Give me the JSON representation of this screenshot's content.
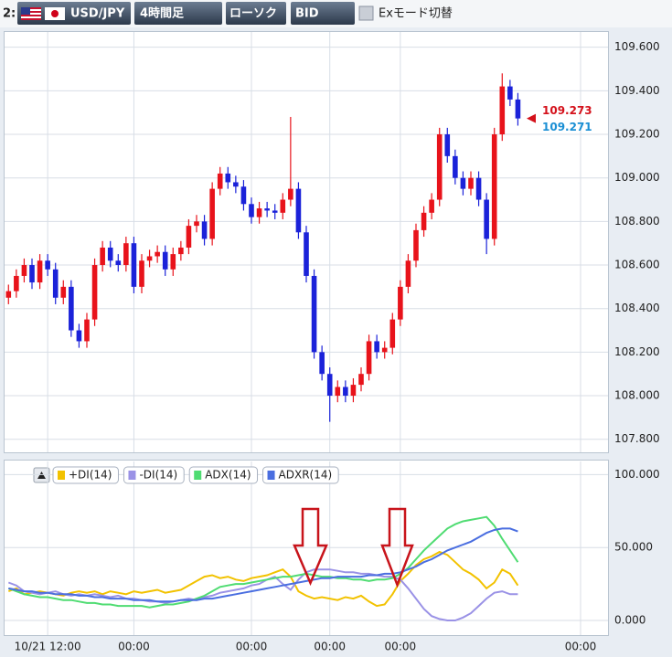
{
  "toolbar": {
    "index": "2:",
    "symbol": "USD/JPY",
    "timeframe": "4時間足",
    "chart_style": "ローソク",
    "price_type": "BID",
    "ex_mode": "Exモード切替"
  },
  "chart_data": [
    {
      "type": "candlestick",
      "up_color": "#e8131b",
      "down_color": "#1b22d9",
      "open": [
        108.45,
        108.48,
        108.55,
        108.6,
        108.52,
        108.62,
        108.58,
        108.45,
        108.5,
        108.3,
        108.25,
        108.35,
        108.6,
        108.68,
        108.62,
        108.6,
        108.7,
        108.5,
        108.62,
        108.64,
        108.66,
        108.58,
        108.65,
        108.68,
        108.78,
        108.8,
        108.72,
        108.95,
        109.02,
        108.98,
        108.96,
        108.88,
        108.82,
        108.86,
        108.85,
        108.84,
        108.9,
        108.95,
        108.75,
        108.55,
        108.2,
        108.1,
        108.0,
        108.04,
        108.0,
        108.05,
        108.1,
        108.25,
        108.2,
        108.22,
        108.35,
        108.5,
        108.62,
        108.76,
        108.84,
        108.9,
        109.2,
        109.1,
        109.0,
        108.95,
        109.0,
        108.9,
        108.72,
        109.2,
        109.42,
        109.36,
        null,
        null,
        null,
        null,
        null,
        null,
        null,
        null,
        null,
        null,
        null
      ],
      "high": [
        108.51,
        108.58,
        108.63,
        108.63,
        108.65,
        108.65,
        108.61,
        108.53,
        108.53,
        108.33,
        108.38,
        108.63,
        108.71,
        108.71,
        108.65,
        108.73,
        108.73,
        108.65,
        108.67,
        108.69,
        108.69,
        108.68,
        108.71,
        108.81,
        108.83,
        108.83,
        108.98,
        109.05,
        109.05,
        109.01,
        108.99,
        108.91,
        108.89,
        108.89,
        108.88,
        108.93,
        109.28,
        108.98,
        108.78,
        108.58,
        108.23,
        108.13,
        108.07,
        108.07,
        108.08,
        108.13,
        108.28,
        108.28,
        108.25,
        108.38,
        108.53,
        108.65,
        108.79,
        108.87,
        108.93,
        109.23,
        109.23,
        109.13,
        109.03,
        109.03,
        109.03,
        108.93,
        109.23,
        109.48,
        109.45,
        109.39,
        null,
        null,
        null,
        null,
        null,
        null,
        null,
        null,
        null,
        null,
        null
      ],
      "low": [
        108.42,
        108.45,
        108.52,
        108.49,
        108.49,
        108.55,
        108.42,
        108.42,
        108.27,
        108.22,
        108.22,
        108.32,
        108.57,
        108.59,
        108.57,
        108.57,
        108.47,
        108.47,
        108.59,
        108.61,
        108.55,
        108.55,
        108.62,
        108.65,
        108.75,
        108.69,
        108.69,
        108.92,
        108.95,
        108.93,
        108.85,
        108.79,
        108.79,
        108.82,
        108.81,
        108.81,
        108.87,
        108.72,
        108.52,
        108.17,
        108.07,
        107.88,
        107.97,
        107.97,
        107.97,
        108.02,
        108.07,
        108.17,
        108.17,
        108.19,
        108.32,
        108.47,
        108.59,
        108.73,
        108.81,
        108.87,
        109.07,
        108.97,
        108.92,
        108.92,
        108.87,
        108.65,
        108.69,
        109.17,
        109.33,
        109.24,
        null,
        null,
        null,
        null,
        null,
        null,
        null,
        null,
        null,
        null,
        null
      ],
      "close": [
        108.48,
        108.55,
        108.6,
        108.52,
        108.62,
        108.58,
        108.45,
        108.5,
        108.3,
        108.25,
        108.35,
        108.6,
        108.68,
        108.62,
        108.6,
        108.7,
        108.5,
        108.62,
        108.64,
        108.66,
        108.58,
        108.65,
        108.68,
        108.78,
        108.8,
        108.72,
        108.95,
        109.02,
        108.98,
        108.96,
        108.88,
        108.82,
        108.86,
        108.85,
        108.84,
        108.9,
        108.95,
        108.75,
        108.55,
        108.2,
        108.1,
        108.0,
        108.04,
        108.0,
        108.05,
        108.1,
        108.25,
        108.2,
        108.22,
        108.35,
        108.5,
        108.62,
        108.76,
        108.84,
        108.9,
        109.2,
        109.1,
        109.0,
        108.95,
        109.0,
        108.9,
        108.72,
        109.2,
        109.42,
        109.36,
        109.273,
        null,
        null,
        null,
        null,
        null,
        null,
        null,
        null,
        null,
        null,
        null
      ],
      "ylim": [
        107.74,
        109.67
      ],
      "yticks": [
        {
          "value": 109.6,
          "label": "109.600"
        },
        {
          "value": 109.4,
          "label": "109.400"
        },
        {
          "value": 109.2,
          "label": "109.200"
        },
        {
          "value": 109.0,
          "label": "109.000"
        },
        {
          "value": 108.8,
          "label": "108.800"
        },
        {
          "value": 108.6,
          "label": "108.600"
        },
        {
          "value": 108.4,
          "label": "108.400"
        },
        {
          "value": 108.2,
          "label": "108.200"
        },
        {
          "value": 108.0,
          "label": "108.000"
        },
        {
          "value": 107.8,
          "label": "107.800"
        }
      ],
      "grid": true,
      "price_labels": [
        {
          "value": 109.273,
          "color": "#d4111b"
        },
        {
          "value": 109.271,
          "color": "#1b8fd4"
        }
      ]
    },
    {
      "type": "line",
      "categories": [
        null,
        null,
        null,
        null,
        null,
        "10/21 12:00",
        null,
        null,
        null,
        null,
        null,
        null,
        null,
        null,
        null,
        null,
        "00:00",
        null,
        null,
        null,
        null,
        null,
        null,
        null,
        null,
        null,
        null,
        null,
        null,
        null,
        null,
        "00:00",
        null,
        null,
        null,
        null,
        null,
        null,
        null,
        null,
        null,
        "00:00",
        null,
        null,
        null,
        null,
        null,
        null,
        null,
        null,
        "00:00",
        null,
        null,
        null,
        null,
        null,
        null,
        null,
        null,
        null,
        null,
        null,
        null,
        null,
        null,
        null,
        null,
        null,
        null,
        null,
        null,
        null,
        null,
        "00:00",
        null,
        null,
        null
      ],
      "series": [
        {
          "name": "+DI(14)",
          "color": "#f2c200",
          "values": [
            20,
            22,
            18,
            19,
            20,
            19,
            18,
            17,
            19,
            20,
            19,
            20,
            18,
            20,
            19,
            18,
            20,
            19,
            20,
            21,
            19,
            20,
            21,
            24,
            27,
            30,
            31,
            29,
            30,
            28,
            27,
            29,
            30,
            31,
            33,
            35,
            30,
            20,
            17,
            15,
            16,
            15,
            14,
            16,
            15,
            17,
            13,
            10,
            11,
            18,
            27,
            32,
            38,
            42,
            44,
            47,
            45,
            40,
            35,
            32,
            28,
            22,
            26,
            35,
            32,
            24,
            null,
            null,
            null,
            null,
            null,
            null,
            null,
            null,
            null,
            null,
            null
          ]
        },
        {
          "name": "-DI(14)",
          "color": "#9a92e6",
          "values": [
            26,
            24,
            20,
            19,
            18,
            19,
            20,
            18,
            17,
            18,
            17,
            18,
            17,
            16,
            17,
            15,
            15,
            14,
            13,
            13,
            12,
            13,
            14,
            15,
            14,
            16,
            17,
            19,
            20,
            21,
            22,
            24,
            25,
            28,
            30,
            25,
            21,
            28,
            33,
            35,
            35,
            35,
            34,
            33,
            33,
            32,
            32,
            31,
            30,
            30,
            28,
            22,
            15,
            8,
            3,
            1,
            0,
            0,
            2,
            5,
            10,
            15,
            19,
            20,
            18,
            18,
            null,
            null,
            null,
            null,
            null,
            null,
            null,
            null,
            null,
            null,
            null
          ]
        },
        {
          "name": "ADX(14)",
          "color": "#4fdc72",
          "values": [
            22,
            20,
            18,
            17,
            16,
            16,
            15,
            14,
            14,
            13,
            12,
            12,
            11,
            11,
            10,
            10,
            10,
            10,
            9,
            10,
            11,
            11,
            12,
            13,
            15,
            17,
            20,
            23,
            24,
            25,
            25,
            26,
            27,
            28,
            29,
            30,
            30,
            31,
            32,
            31,
            30,
            30,
            29,
            29,
            28,
            28,
            27,
            28,
            28,
            29,
            32,
            36,
            42,
            48,
            53,
            58,
            63,
            66,
            68,
            69,
            70,
            71,
            65,
            56,
            48,
            40,
            null,
            null,
            null,
            null,
            null,
            null,
            null,
            null,
            null,
            null,
            null
          ]
        },
        {
          "name": "ADXR(14)",
          "color": "#4a6ee0",
          "values": [
            22,
            21,
            20,
            20,
            19,
            19,
            18,
            18,
            18,
            17,
            17,
            16,
            16,
            15,
            15,
            15,
            14,
            14,
            14,
            13,
            13,
            13,
            14,
            14,
            14,
            15,
            15,
            16,
            17,
            18,
            19,
            20,
            21,
            22,
            23,
            24,
            25,
            26,
            27,
            28,
            29,
            29,
            30,
            30,
            30,
            30,
            31,
            31,
            32,
            32,
            33,
            35,
            37,
            40,
            42,
            45,
            48,
            50,
            52,
            54,
            57,
            60,
            62,
            63,
            63,
            61,
            null,
            null,
            null,
            null,
            null,
            null,
            null,
            null,
            null,
            null,
            null
          ]
        }
      ],
      "ylim": [
        -10,
        109
      ],
      "yticks": [
        {
          "value": 100,
          "label": "100.000"
        },
        {
          "value": 50,
          "label": "50.000"
        },
        {
          "value": 0,
          "label": "0.000"
        }
      ],
      "grid": true
    }
  ]
}
